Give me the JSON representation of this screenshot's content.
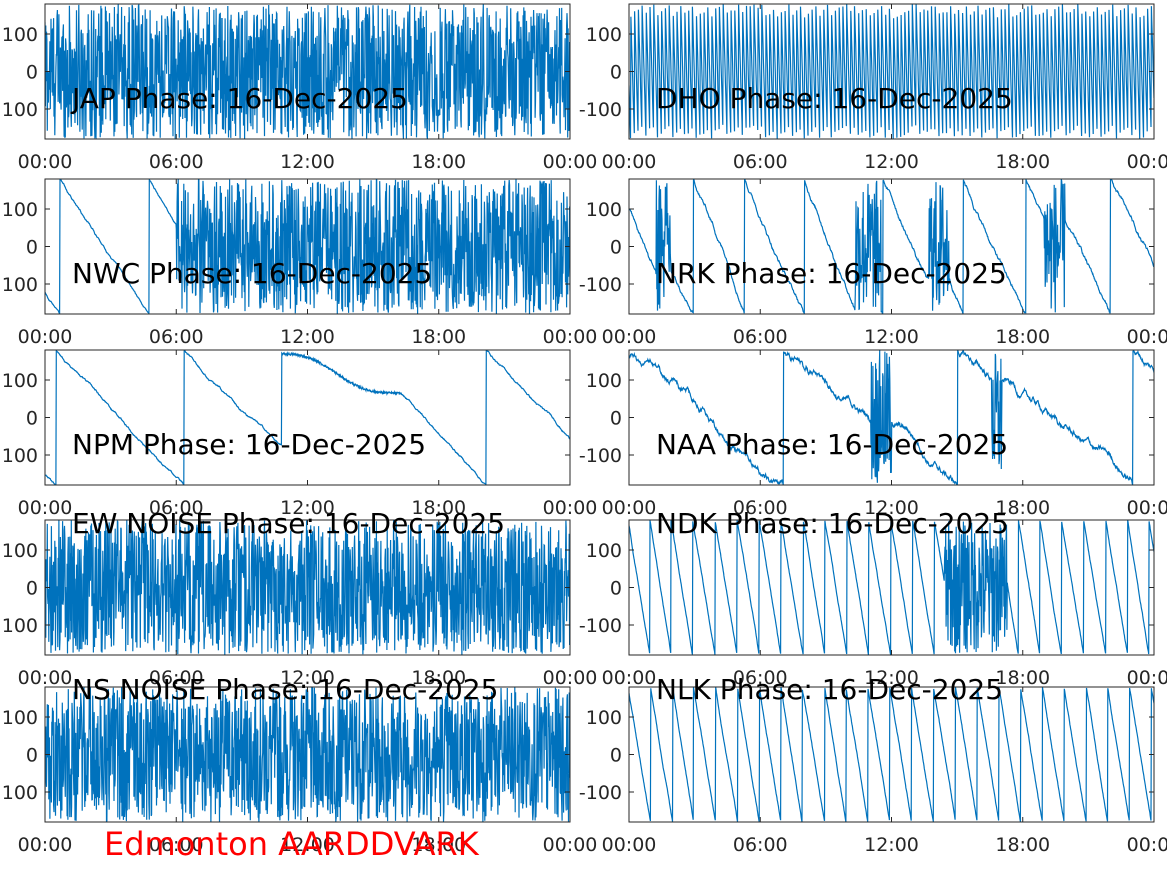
{
  "figure": {
    "footer_label": "Edmonton AARDDVARK",
    "footer_color": "#ff0000",
    "line_color": "#0072bd"
  },
  "chart_data": [
    {
      "type": "line",
      "title": "JAP Phase: 16-Dec-2025",
      "pattern": "noise",
      "xticks": [
        "00:00",
        "06:00",
        "12:00",
        "18:00",
        "00:00"
      ],
      "yticks": [
        "100",
        "0",
        "100"
      ],
      "ylim": [
        -180,
        180
      ]
    },
    {
      "type": "line",
      "title": "DHO Phase: 16-Dec-2025",
      "pattern": "fastwrap",
      "xticks": [
        "00:00",
        "06:00",
        "12:00",
        "18:00",
        "00:00"
      ],
      "yticks": [
        "100",
        "0",
        "-100"
      ],
      "ylim": [
        -180,
        180
      ]
    },
    {
      "type": "line",
      "title": "NWC Phase: 16-Dec-2025",
      "pattern": "drift-then-noise",
      "xticks": [
        "00:00",
        "06:00",
        "12:00",
        "18:00",
        "00:00"
      ],
      "yticks": [
        "100",
        "0",
        "100"
      ],
      "ylim": [
        -180,
        180
      ]
    },
    {
      "type": "line",
      "title": "NRK Phase: 16-Dec-2025",
      "pattern": "sawtooth-with-bursts",
      "xticks": [
        "00:00",
        "06:00",
        "12:00",
        "18:00",
        "00:00"
      ],
      "yticks": [
        "100",
        "0",
        "-100"
      ],
      "ylim": [
        -180,
        180
      ]
    },
    {
      "type": "line",
      "title": "NPM Phase: 16-Dec-2025",
      "pattern": "slow-drift",
      "xticks": [
        "00:00",
        "06:00",
        "12:00",
        "18:00",
        "00:00"
      ],
      "yticks": [
        "100",
        "0",
        "100"
      ],
      "ylim": [
        -180,
        180
      ]
    },
    {
      "type": "line",
      "title": "NAA Phase: 16-Dec-2025",
      "pattern": "slow-drift-with-bursts",
      "xticks": [
        "00:00",
        "06:00",
        "12:00",
        "18:00",
        "00:00"
      ],
      "yticks": [
        "100",
        "0",
        "-100"
      ],
      "ylim": [
        -180,
        180
      ]
    },
    {
      "type": "line",
      "title": "EW NOISE Phase: 16-Dec-2025",
      "pattern": "noise",
      "xticks": [
        "00:00",
        "06:00",
        "12:00",
        "18:00",
        "00:00"
      ],
      "yticks": [
        "100",
        "0",
        "100"
      ],
      "ylim": [
        -180,
        180
      ]
    },
    {
      "type": "line",
      "title": "NDK Phase: 16-Dec-2025",
      "pattern": "regular-sawtooth",
      "xticks": [
        "00:00",
        "06:00",
        "12:00",
        "18:00",
        "00:00"
      ],
      "yticks": [
        "100",
        "0",
        "-100"
      ],
      "ylim": [
        -180,
        180
      ]
    },
    {
      "type": "line",
      "title": "NS NOISE Phase: 16-Dec-2025",
      "pattern": "noise",
      "xticks": [
        "00:00",
        "06:00",
        "12:00",
        "18:00",
        "00:00"
      ],
      "yticks": [
        "100",
        "0",
        "100"
      ],
      "ylim": [
        -180,
        180
      ]
    },
    {
      "type": "line",
      "title": "NLK Phase: 16-Dec-2025",
      "pattern": "regular-sawtooth",
      "xticks": [
        "00:00",
        "06:00",
        "12:00",
        "18:00",
        "00:00"
      ],
      "yticks": [
        "100",
        "0",
        "-100"
      ],
      "ylim": [
        -180,
        180
      ]
    }
  ]
}
